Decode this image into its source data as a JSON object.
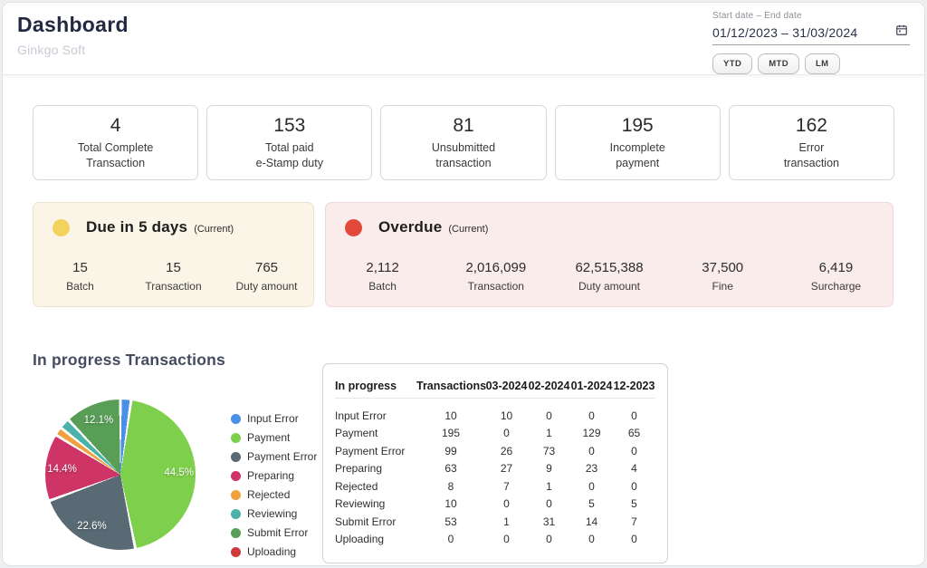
{
  "header": {
    "title": "Dashboard",
    "subtitle": "Ginkgo Soft",
    "date_picker": {
      "label": "Start date – End date",
      "value": "01/12/2023 – 31/03/2024",
      "calendar_icon": "calendar-icon"
    },
    "range_buttons": [
      {
        "label": "YTD"
      },
      {
        "label": "MTD"
      },
      {
        "label": "LM"
      }
    ]
  },
  "stat_cards": [
    {
      "value": "4",
      "label_line1": "Total Complete",
      "label_line2": "Transaction"
    },
    {
      "value": "153",
      "label_line1": "Total paid",
      "label_line2": "e-Stamp duty"
    },
    {
      "value": "81",
      "label_line1": "Unsubmitted",
      "label_line2": "transaction"
    },
    {
      "value": "195",
      "label_line1": "Incomplete",
      "label_line2": "payment"
    },
    {
      "value": "162",
      "label_line1": "Error",
      "label_line2": "transaction"
    }
  ],
  "due_panel": {
    "title": "Due in 5 days",
    "qualifier": "(Current)",
    "dot_color": "#f2d45c",
    "stats": [
      {
        "value": "15",
        "label": "Batch"
      },
      {
        "value": "15",
        "label": "Transaction"
      },
      {
        "value": "765",
        "label": "Duty amount"
      }
    ]
  },
  "overdue_panel": {
    "title": "Overdue",
    "qualifier": "(Current)",
    "dot_color": "#e2493b",
    "stats": [
      {
        "value": "2,112",
        "label": "Batch"
      },
      {
        "value": "2,016,099",
        "label": "Transaction"
      },
      {
        "value": "62,515,388",
        "label": "Duty amount"
      },
      {
        "value": "37,500",
        "label": "Fine"
      },
      {
        "value": "6,419",
        "label": "Surcharge"
      }
    ]
  },
  "section_title": "In progress Transactions",
  "chart_data": {
    "type": "pie",
    "title": "In progress Transactions",
    "legend_position": "right",
    "slices": [
      {
        "label": "Input Error",
        "value": 10,
        "pct": "2.3%",
        "color": "#4a8fe8"
      },
      {
        "label": "Payment",
        "value": 195,
        "pct": "44.5%",
        "color": "#7ed04c"
      },
      {
        "label": "Payment Error",
        "value": 99,
        "pct": "22.6%",
        "color": "#596a74"
      },
      {
        "label": "Preparing",
        "value": 63,
        "pct": "14.4%",
        "color": "#ce3465"
      },
      {
        "label": "Rejected",
        "value": 8,
        "pct": "1.8%",
        "color": "#f0a03c"
      },
      {
        "label": "Reviewing",
        "value": 10,
        "pct": "2.3%",
        "color": "#4bb2aa"
      },
      {
        "label": "Submit Error",
        "value": 53,
        "pct": "12.1%",
        "color": "#589e57"
      },
      {
        "label": "Uploading",
        "value": 0,
        "pct": "0%",
        "color": "#cf3a3a"
      }
    ],
    "table": {
      "headers": [
        "In progress",
        "Transactions",
        "03-2024",
        "02-2024",
        "01-2024",
        "12-2023"
      ],
      "rows": [
        [
          "Input Error",
          "10",
          "10",
          "0",
          "0",
          "0"
        ],
        [
          "Payment",
          "195",
          "0",
          "1",
          "129",
          "65"
        ],
        [
          "Payment Error",
          "99",
          "26",
          "73",
          "0",
          "0"
        ],
        [
          "Preparing",
          "63",
          "27",
          "9",
          "23",
          "4"
        ],
        [
          "Rejected",
          "8",
          "7",
          "1",
          "0",
          "0"
        ],
        [
          "Reviewing",
          "10",
          "0",
          "0",
          "5",
          "5"
        ],
        [
          "Submit Error",
          "53",
          "1",
          "31",
          "14",
          "7"
        ],
        [
          "Uploading",
          "0",
          "0",
          "0",
          "0",
          "0"
        ]
      ]
    }
  }
}
